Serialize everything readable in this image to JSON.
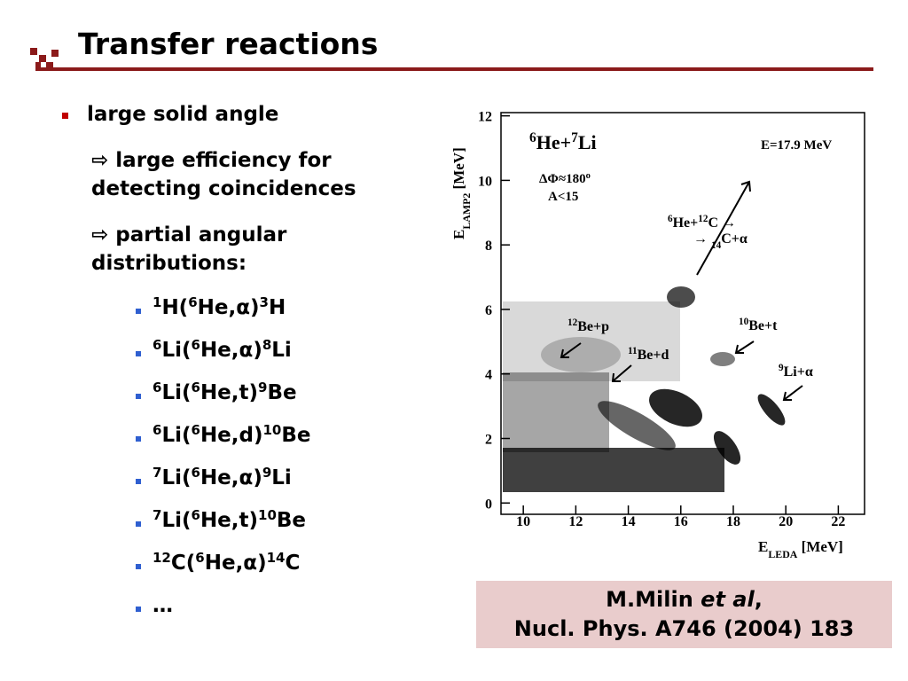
{
  "title": "Transfer reactions",
  "bullets": {
    "main": "large solid angle",
    "arrow": "⇨",
    "sub1": [
      "large efficiency for",
      "detecting coincidences"
    ],
    "sub2": [
      "partial angular",
      "distributions:"
    ],
    "reactions": [
      [
        {
          "t": "1",
          "s": "sup"
        },
        {
          "t": "H("
        },
        {
          "t": "6",
          "s": "sup"
        },
        {
          "t": "He,α)"
        },
        {
          "t": "3",
          "s": "sup"
        },
        {
          "t": "H"
        }
      ],
      [
        {
          "t": "6",
          "s": "sup"
        },
        {
          "t": "Li("
        },
        {
          "t": "6",
          "s": "sup"
        },
        {
          "t": "He,α)"
        },
        {
          "t": "8",
          "s": "sup"
        },
        {
          "t": "Li"
        }
      ],
      [
        {
          "t": "6",
          "s": "sup"
        },
        {
          "t": "Li("
        },
        {
          "t": "6",
          "s": "sup"
        },
        {
          "t": "He,t)"
        },
        {
          "t": "9",
          "s": "sup"
        },
        {
          "t": "Be"
        }
      ],
      [
        {
          "t": "6",
          "s": "sup"
        },
        {
          "t": "Li("
        },
        {
          "t": "6",
          "s": "sup"
        },
        {
          "t": "He,d)"
        },
        {
          "t": "10",
          "s": "sup"
        },
        {
          "t": "Be"
        }
      ],
      [
        {
          "t": "7",
          "s": "sup"
        },
        {
          "t": "Li("
        },
        {
          "t": "6",
          "s": "sup"
        },
        {
          "t": "He,α)"
        },
        {
          "t": "9",
          "s": "sup"
        },
        {
          "t": "Li"
        }
      ],
      [
        {
          "t": "7",
          "s": "sup"
        },
        {
          "t": "Li("
        },
        {
          "t": "6",
          "s": "sup"
        },
        {
          "t": "He,t)"
        },
        {
          "t": "10",
          "s": "sup"
        },
        {
          "t": "Be"
        }
      ],
      [
        {
          "t": "12",
          "s": "sup"
        },
        {
          "t": "C("
        },
        {
          "t": "6",
          "s": "sup"
        },
        {
          "t": "He,α)"
        },
        {
          "t": "14",
          "s": "sup"
        },
        {
          "t": "C"
        }
      ],
      [
        {
          "t": "…"
        }
      ]
    ]
  },
  "reference": {
    "authors": "M.Milin",
    "etal": "et al",
    "comma": ",",
    "journal": "Nucl. Phys. A746 (2004) 183"
  },
  "figure": {
    "xlim": [
      9.15,
      23.0
    ],
    "ylim": [
      -0.35,
      12.1
    ],
    "xticks": [
      10,
      12,
      14,
      16,
      18,
      20,
      22
    ],
    "yticks": [
      0,
      2,
      4,
      6,
      8,
      10,
      12
    ],
    "xlabel": [
      {
        "t": "E"
      },
      {
        "t": "LEDA",
        "s": "sub"
      },
      {
        "t": " [MeV]"
      }
    ],
    "ylabel": [
      {
        "t": "E"
      },
      {
        "t": "LAMP2",
        "s": "sub"
      },
      {
        "t": " [MeV]"
      }
    ],
    "system": [
      {
        "t": "6",
        "s": "sup"
      },
      {
        "t": "He+"
      },
      {
        "t": "7",
        "s": "sup"
      },
      {
        "t": "Li"
      }
    ],
    "energy": "E=17.9 MeV",
    "cut1": [
      {
        "t": "ΔΦ≈180"
      },
      {
        "t": "o",
        "s": "sup"
      }
    ],
    "cut2": "A<15",
    "ann_c1": [
      {
        "t": "6",
        "s": "sup"
      },
      {
        "t": "He+"
      },
      {
        "t": "12",
        "s": "sup"
      },
      {
        "t": "C →"
      }
    ],
    "ann_c2": [
      {
        "t": "→ "
      },
      {
        "t": "14",
        "s": "sub"
      },
      {
        "t": "C+α"
      }
    ],
    "ann_be12": [
      {
        "t": "12",
        "s": "sup"
      },
      {
        "t": "Be+p"
      }
    ],
    "ann_be11": [
      {
        "t": "11",
        "s": "sup"
      },
      {
        "t": "Be+d"
      }
    ],
    "ann_be10": [
      {
        "t": "10",
        "s": "sup"
      },
      {
        "t": "Be+t"
      }
    ],
    "ann_li9": [
      {
        "t": "9",
        "s": "sup"
      },
      {
        "t": "Li+α"
      }
    ]
  }
}
